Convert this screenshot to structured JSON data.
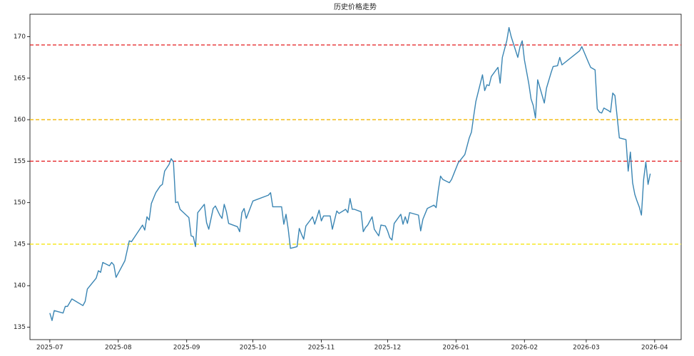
{
  "chart_data": {
    "type": "line",
    "title": "历史价格走势",
    "x": [
      20270,
      20271,
      20272,
      20276,
      20277,
      20278,
      20280,
      20285,
      20286,
      20287,
      20291,
      20292,
      20293,
      20294,
      20297,
      20298,
      20299,
      20300,
      20301,
      20304,
      20306,
      20307,
      20308,
      20312,
      20313,
      20314,
      20315,
      20316,
      20318,
      20320,
      20321,
      20322,
      20324,
      20325,
      20326,
      20327,
      20328,
      20329,
      20333,
      20334,
      20335,
      20336,
      20337,
      20340,
      20341,
      20342,
      20344,
      20345,
      20347,
      20348,
      20349,
      20350,
      20351,
      20355,
      20356,
      20357,
      20358,
      20359,
      20362,
      20369,
      20370,
      20371,
      20375,
      20376,
      20377,
      20378,
      20379,
      20382,
      20383,
      20384,
      20385,
      20386,
      20388,
      20389,
      20390,
      20392,
      20393,
      20394,
      20397,
      20398,
      20400,
      20401,
      20404,
      20405,
      20406,
      20407,
      20408,
      20411,
      20412,
      20413,
      20414,
      20416,
      20417,
      20419,
      20420,
      20422,
      20423,
      20424,
      20425,
      20426,
      20429,
      20430,
      20431,
      20432,
      20433,
      20437,
      20438,
      20439,
      20441,
      20444,
      20445,
      20446,
      20447,
      20448,
      20451,
      20452,
      20455,
      20458,
      20460,
      20461,
      20462,
      20463,
      20466,
      20467,
      20468,
      20469,
      20470,
      20473,
      20474,
      20475,
      20477,
      20478,
      20479,
      20482,
      20483,
      20484,
      20485,
      20487,
      20488,
      20489,
      20490,
      20491,
      20494,
      20495,
      20497,
      20498,
      20500,
      20501,
      20502,
      20510,
      20511,
      20514,
      20515,
      20517,
      20518,
      20519,
      20520,
      20521,
      20523,
      20524,
      20525,
      20526,
      20528,
      20531,
      20532,
      20533,
      20534,
      20535,
      20536,
      20537,
      20538,
      20539,
      20540,
      20541,
      20542
    ],
    "values": [
      136.7,
      135.8,
      137.0,
      136.7,
      137.5,
      137.5,
      138.4,
      137.6,
      138.1,
      139.6,
      140.9,
      141.8,
      141.6,
      142.8,
      142.4,
      142.8,
      142.5,
      141.0,
      141.5,
      143.0,
      145.4,
      145.3,
      145.7,
      147.3,
      146.7,
      148.3,
      147.9,
      149.9,
      151.2,
      152.0,
      152.2,
      153.8,
      154.6,
      155.3,
      154.9,
      150.0,
      150.1,
      149.2,
      148.2,
      146.0,
      145.9,
      144.7,
      148.8,
      149.8,
      147.6,
      146.8,
      149.3,
      149.6,
      148.5,
      148.1,
      149.8,
      148.9,
      147.5,
      147.1,
      146.5,
      148.8,
      149.3,
      148.1,
      150.2,
      150.9,
      151.2,
      149.5,
      149.5,
      147.4,
      148.6,
      146.8,
      144.5,
      144.7,
      146.9,
      146.2,
      145.6,
      147.2,
      147.9,
      148.3,
      147.4,
      149.1,
      147.8,
      148.4,
      148.4,
      146.8,
      149.0,
      148.7,
      149.2,
      148.8,
      150.5,
      149.2,
      149.2,
      148.9,
      146.5,
      147.0,
      147.3,
      148.3,
      146.8,
      146.0,
      147.3,
      147.2,
      146.6,
      145.8,
      145.5,
      147.5,
      148.6,
      147.4,
      148.3,
      147.5,
      148.8,
      148.5,
      146.6,
      148.0,
      149.3,
      149.7,
      149.4,
      151.5,
      153.2,
      152.8,
      152.4,
      152.8,
      154.8,
      155.8,
      157.8,
      158.5,
      160.4,
      162.2,
      165.4,
      163.5,
      164.2,
      164.1,
      165.2,
      166.3,
      164.4,
      167.5,
      169.5,
      171.1,
      170.0,
      167.5,
      168.8,
      169.5,
      167.2,
      164.3,
      162.5,
      161.7,
      160.2,
      164.8,
      162.0,
      163.8,
      165.6,
      166.4,
      166.5,
      167.5,
      166.6,
      168.3,
      168.8,
      166.9,
      166.3,
      166.0,
      161.3,
      160.9,
      160.8,
      161.4,
      161.1,
      160.9,
      163.2,
      162.9,
      157.8,
      157.6,
      153.8,
      156.1,
      152.4,
      151.0,
      150.2,
      149.5,
      148.5,
      152.8,
      154.9,
      152.2,
      153.5
    ],
    "color": "#3a85b3",
    "xlim": [
      20261,
      20556
    ],
    "xticks": [
      {
        "value": 20270,
        "label": "2025-07"
      },
      {
        "value": 20301,
        "label": "2025-08"
      },
      {
        "value": 20332,
        "label": "2025-09"
      },
      {
        "value": 20362,
        "label": "2025-10"
      },
      {
        "value": 20393,
        "label": "2025-11"
      },
      {
        "value": 20423,
        "label": "2025-12"
      },
      {
        "value": 20454,
        "label": "2026-01"
      },
      {
        "value": 20485,
        "label": "2026-02"
      },
      {
        "value": 20513,
        "label": "2026-03"
      },
      {
        "value": 20544,
        "label": "2026-04"
      }
    ],
    "ylim": [
      133.5,
      172.7
    ],
    "yticks": [
      135,
      140,
      145,
      150,
      155,
      160,
      165,
      170
    ],
    "reference_lines": [
      {
        "value": 169,
        "color": "#e31a1c"
      },
      {
        "value": 160,
        "color": "#f2b705"
      },
      {
        "value": 155,
        "color": "#e31a1c"
      },
      {
        "value": 145,
        "color": "#f5e612"
      }
    ]
  }
}
